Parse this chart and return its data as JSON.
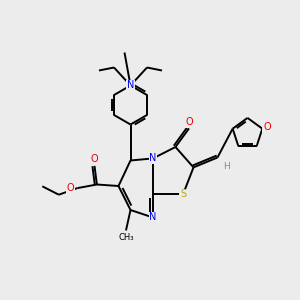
{
  "background_color": "#ececec",
  "bond_color": "#000000",
  "atom_colors": {
    "N": "#0000ee",
    "O": "#ee0000",
    "S": "#bbaa00",
    "H": "#888888",
    "C": "#000000"
  },
  "figsize": [
    3.0,
    3.0
  ],
  "dpi": 100,
  "lw": 1.4,
  "fs": 7.0
}
